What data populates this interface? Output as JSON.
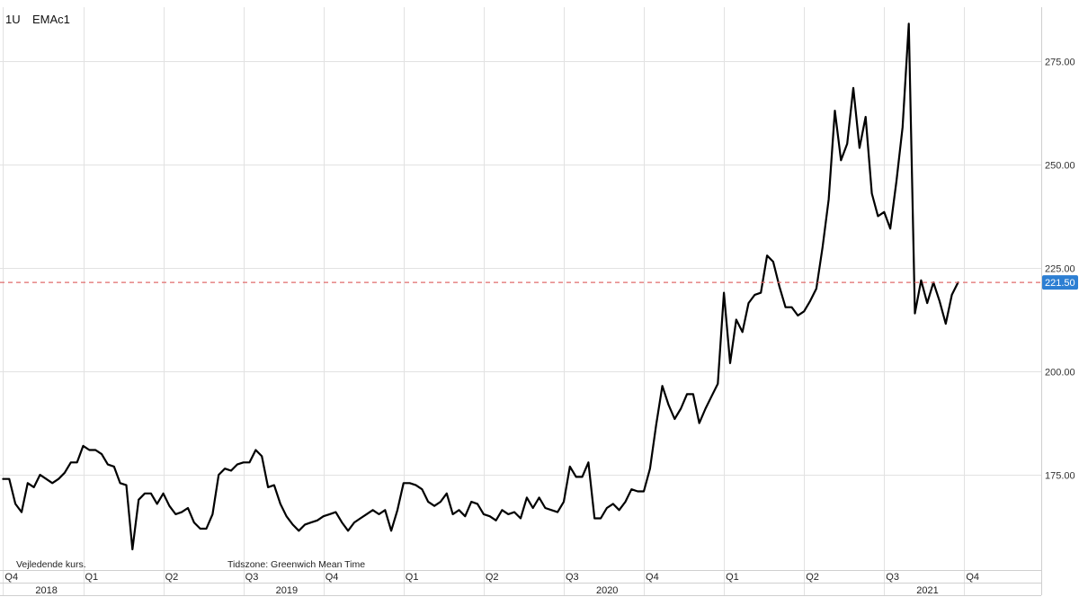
{
  "header": {
    "interval": "1U",
    "symbol": "EMAc1"
  },
  "footer": {
    "note": "Vejledende kurs.",
    "timezone": "Tidszone: Greenwich Mean Time"
  },
  "current_price": {
    "label": "221.50",
    "value": 221.5,
    "line_color": "#e06c6c",
    "tag_color": "#2d7fd3"
  },
  "chart_data": {
    "type": "line",
    "title": "",
    "xlabel": "",
    "ylabel": "",
    "y_ticks": [
      175,
      200,
      225,
      250,
      275
    ],
    "y_tick_labels": [
      "175.00",
      "200.00",
      "225.00",
      "250.00",
      "275.00"
    ],
    "ylim": [
      152,
      288
    ],
    "xlim": [
      -0.5,
      168.5
    ],
    "grid": true,
    "quarter_ticks": [
      {
        "label": "Q4",
        "x": 0
      },
      {
        "label": "Q1",
        "x": 13
      },
      {
        "label": "Q2",
        "x": 26
      },
      {
        "label": "Q3",
        "x": 39
      },
      {
        "label": "Q4",
        "x": 52
      },
      {
        "label": "Q1",
        "x": 65
      },
      {
        "label": "Q2",
        "x": 78
      },
      {
        "label": "Q3",
        "x": 91
      },
      {
        "label": "Q4",
        "x": 104
      },
      {
        "label": "Q1",
        "x": 117
      },
      {
        "label": "Q2",
        "x": 130
      },
      {
        "label": "Q3",
        "x": 143
      },
      {
        "label": "Q4",
        "x": 156
      }
    ],
    "year_ticks": [
      {
        "label": "2018",
        "x": 0
      },
      {
        "label": "2019",
        "x": 39
      },
      {
        "label": "2020",
        "x": 91
      },
      {
        "label": "2021",
        "x": 143
      }
    ],
    "series": [
      {
        "color": "#000000",
        "values": [
          174,
          174,
          168,
          166,
          173,
          172,
          175,
          174,
          173,
          174,
          175.5,
          178,
          178,
          182,
          181,
          181,
          180,
          177.5,
          177,
          173,
          172.5,
          157,
          169,
          170.5,
          170.5,
          168,
          170.5,
          167.5,
          165.5,
          166,
          167,
          163.5,
          162,
          162,
          165.5,
          175,
          176.5,
          176,
          177.5,
          178,
          178,
          181,
          179.5,
          172,
          172.5,
          168,
          165,
          163,
          161.5,
          163,
          163.5,
          164,
          165,
          165.5,
          166,
          163.5,
          161.5,
          163.5,
          164.5,
          165.5,
          166.5,
          165.5,
          166.5,
          161.5,
          166.5,
          173,
          173,
          172.5,
          171.5,
          168.5,
          167.5,
          168.5,
          170.5,
          165.5,
          166.5,
          165,
          168.5,
          168,
          165.5,
          165,
          164,
          166.5,
          165.5,
          166,
          164.5,
          169.5,
          167,
          169.5,
          167,
          166.5,
          166,
          168.5,
          177,
          174.5,
          174.5,
          178,
          164.5,
          164.5,
          167,
          168,
          166.5,
          168.5,
          171.5,
          171,
          171,
          176.5,
          187,
          196.5,
          192,
          188.5,
          191,
          194.5,
          194.5,
          187.5,
          191,
          194,
          197,
          219,
          202,
          212.5,
          209.5,
          216.5,
          218.5,
          219,
          228,
          226.5,
          220.5,
          215.5,
          215.5,
          213.5,
          214.5,
          217,
          220,
          230,
          241.5,
          263,
          251,
          255,
          268.5,
          254,
          261.5,
          243,
          237.5,
          238.5,
          234.5,
          246,
          259,
          284,
          214,
          222,
          216.5,
          221.5,
          217,
          211.5,
          218.5,
          221.5
        ]
      }
    ]
  }
}
